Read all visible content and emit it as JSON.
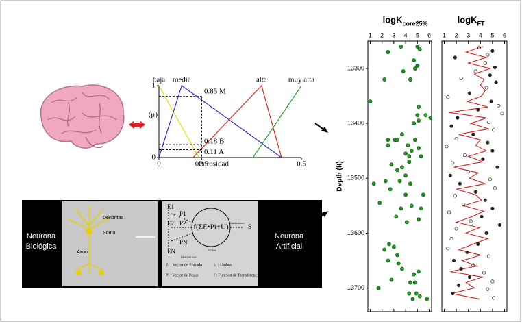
{
  "chart_data": [
    {
      "type": "line",
      "xlabel": "Porosidad",
      "ylabel": "(μ)",
      "xlim": [
        0,
        0.5
      ],
      "ylim": [
        0,
        1
      ],
      "xticks": [
        0,
        0.15,
        0.5
      ],
      "yticks": [
        0,
        1
      ],
      "series": [
        {
          "name": "baja",
          "color": "#e8e000",
          "x": [
            0,
            0.14
          ],
          "values": [
            1,
            0
          ]
        },
        {
          "name": "media",
          "color": "#2a2ad8",
          "x": [
            0,
            0.08,
            0.43
          ],
          "values": [
            0,
            1,
            0
          ]
        },
        {
          "name": "alta",
          "color": "#e02020",
          "x": [
            0.12,
            0.36,
            0.43
          ],
          "values": [
            0,
            1,
            0
          ]
        },
        {
          "name": "muy alta",
          "color": "#20a020",
          "x": [
            0.33,
            0.5
          ],
          "values": [
            0,
            1
          ]
        }
      ],
      "annotations": [
        {
          "value": 0.85,
          "label": "0.85 M"
        },
        {
          "value": 0.18,
          "label": "0.18 B"
        },
        {
          "value": 0.11,
          "label": "0.11 A"
        }
      ],
      "cut_x": 0.15
    },
    {
      "type": "scatter",
      "title": "logK",
      "title_subscript": "core25%",
      "ylabel": "Depth (ft)",
      "xlim": [
        0.8,
        6.2
      ],
      "xticks": [
        1,
        2,
        3,
        4,
        5,
        6
      ],
      "ylim": [
        13250,
        13743
      ],
      "yticks": [
        13300,
        13400,
        13500,
        13600,
        13700
      ],
      "color": "#1f9a1f",
      "y": [
        13260,
        13260,
        13265,
        13270,
        13285,
        13295,
        13300,
        13305,
        13320,
        13320,
        13360,
        13370,
        13385,
        13385,
        13390,
        13395,
        13400,
        13420,
        13430,
        13430,
        13430,
        13430,
        13440,
        13445,
        13440,
        13450,
        13455,
        13460,
        13460,
        13475,
        13470,
        13480,
        13485,
        13495,
        13505,
        13505,
        13510,
        13510,
        13520,
        13530,
        13530,
        13545,
        13550,
        13555,
        13555,
        13570,
        13575,
        13580,
        13620,
        13625,
        13630,
        13640,
        13650,
        13655,
        13665,
        13670,
        13675,
        13685,
        13690,
        13690,
        13700,
        13710,
        13710,
        13715,
        13720,
        13720
      ],
      "values": [
        3.6,
        5.0,
        5.2,
        2.5,
        4.7,
        5.0,
        4.8,
        3.8,
        2.2,
        4.4,
        1.0,
        5.1,
        5.0,
        5.7,
        6.1,
        5.1,
        4.7,
        3.7,
        3.1,
        3.3,
        2.5,
        4.8,
        4.2,
        5.1,
        2.5,
        4.5,
        4.0,
        4.3,
        5.3,
        2.8,
        4.3,
        3.7,
        3.3,
        4.0,
        2.3,
        3.5,
        4.4,
        1.3,
        2.7,
        4.0,
        5.5,
        1.8,
        4.5,
        3.6,
        5.3,
        3.2,
        5.1,
        4.1,
        2.6,
        3.0,
        2.2,
        3.3,
        2.5,
        3.4,
        3.7,
        5.1,
        4.7,
        2.8,
        4.4,
        4.8,
        1.7,
        4.3,
        4.9,
        5.2,
        5.8,
        4.6
      ]
    },
    {
      "type": "line_scatter",
      "title": "logK",
      "title_subscript": "FT",
      "xlim": [
        0.8,
        6.2
      ],
      "xticks": [
        1,
        2,
        3,
        4,
        5,
        6
      ],
      "ylim": [
        13250,
        13743
      ],
      "line": {
        "color": "#d42020",
        "y": [
          13260,
          13270,
          13280,
          13290,
          13300,
          13310,
          13320,
          13330,
          13340,
          13350,
          13360,
          13370,
          13380,
          13390,
          13400,
          13410,
          13420,
          13430,
          13440,
          13450,
          13460,
          13470,
          13480,
          13490,
          13500,
          13510,
          13520,
          13530,
          13540,
          13550,
          13560,
          13570,
          13580,
          13590,
          13600,
          13610,
          13620,
          13630,
          13640,
          13650,
          13660,
          13670,
          13680,
          13690,
          13700,
          13710,
          13720
        ],
        "values": [
          4.2,
          2.8,
          4.5,
          3.0,
          4.8,
          3.5,
          4.3,
          4.0,
          4.4,
          4.1,
          2.9,
          4.6,
          1.4,
          4.5,
          3.2,
          4.7,
          2.2,
          4.0,
          3.6,
          4.5,
          3.0,
          4.2,
          1.8,
          3.8,
          3.1,
          4.4,
          2.0,
          3.6,
          4.1,
          2.6,
          4.3,
          3.3,
          2.0,
          3.9,
          2.8,
          4.6,
          3.4,
          2.2,
          4.0,
          2.5,
          3.7,
          1.5,
          4.2,
          2.8,
          3.5,
          1.6,
          3.9
        ]
      },
      "points": {
        "color": "#222222",
        "y": [
          13262,
          13268,
          13275,
          13280,
          13290,
          13298,
          13305,
          13312,
          13318,
          13325,
          13335,
          13345,
          13352,
          13360,
          13368,
          13375,
          13382,
          13390,
          13398,
          13405,
          13412,
          13420,
          13428,
          13435,
          13442,
          13450,
          13458,
          13465,
          13472,
          13480,
          13488,
          13495,
          13502,
          13510,
          13518,
          13525,
          13532,
          13540,
          13548,
          13555,
          13562,
          13570,
          13578,
          13585,
          13592,
          13600,
          13610,
          13620,
          13628,
          13635,
          13642,
          13650,
          13658,
          13665,
          13672,
          13680,
          13688,
          13695,
          13702,
          13710,
          13718
        ],
        "values": [
          3.9,
          5.0,
          4.6,
          1.9,
          4.4,
          5.2,
          3.6,
          4.8,
          2.4,
          5.3,
          4.5,
          3.1,
          1.3,
          4.9,
          5.5,
          3.8,
          5.8,
          2.1,
          4.7,
          1.6,
          5.1,
          3.4,
          2.0,
          4.6,
          1.2,
          5.0,
          2.7,
          4.2,
          1.7,
          5.4,
          3.0,
          1.5,
          4.8,
          2.3,
          5.2,
          3.6,
          1.9,
          4.4,
          2.6,
          5.0,
          1.4,
          4.1,
          3.2,
          5.6,
          2.0,
          4.5,
          1.6,
          3.8,
          1.3,
          2.9,
          4.7,
          1.8,
          3.4,
          2.4,
          4.3,
          3.1,
          5.0,
          2.2,
          4.6,
          1.7,
          5.1
        ]
      }
    }
  ],
  "neuron": {
    "biological": [
      "Neurona",
      "Biológica"
    ],
    "artificial": [
      "Neurona",
      "Artificial"
    ],
    "bio_labels": [
      "Dendritas",
      "Soma",
      "Axon"
    ],
    "inputs": [
      "E1",
      "P1",
      "E2",
      "P2",
      "EN",
      "PN"
    ],
    "formula": "f(ΣE•Pi+U)",
    "output_label": "Salida Axon",
    "output": "S",
    "dendritas": "DENDRITAS",
    "soma": "SOMA",
    "legend": [
      "Ei : Vector de Entrada",
      "U : Umbral",
      "Pi : Vector de Pesos",
      "f : Funcion de Transferencia"
    ]
  }
}
